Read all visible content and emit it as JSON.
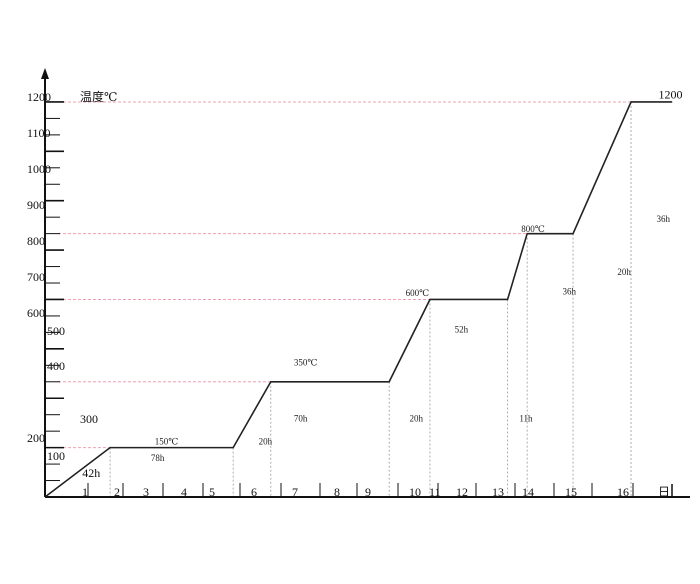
{
  "chart_data": {
    "type": "line",
    "ylabel": "温度℃",
    "xlabel": "日",
    "y_tick_labels": [
      "1200",
      "1100",
      "1000",
      "900",
      "800",
      "700",
      "600",
      "500",
      "400",
      "300",
      "200",
      "100"
    ],
    "x_tick_labels": [
      "1",
      "2",
      "3",
      "4",
      "5",
      "6",
      "7",
      "8",
      "9",
      "10",
      "11",
      "12",
      "13",
      "14",
      "15",
      "16"
    ],
    "ylim": [
      0,
      1200
    ],
    "xlim": [
      0,
      16.5
    ],
    "series": [
      {
        "points": [
          [
            0,
            0
          ],
          [
            1.66,
            150
          ],
          [
            4.8,
            150
          ],
          [
            5.76,
            350
          ],
          [
            8.78,
            350
          ],
          [
            9.82,
            600
          ],
          [
            11.8,
            600
          ],
          [
            12.3,
            800
          ],
          [
            13.47,
            800
          ],
          [
            14.95,
            1200
          ],
          [
            16,
            1200
          ]
        ]
      }
    ],
    "reference_levels": [
      150,
      350,
      600,
      800,
      1200
    ],
    "annotations": [
      {
        "text": "150℃",
        "x": 2.8,
        "y": 160
      },
      {
        "text": "78h",
        "x": 2.7,
        "y": 110
      },
      {
        "text": "42h",
        "x": 0.95,
        "y": 60
      },
      {
        "text": "20h",
        "x": 5.45,
        "y": 160
      },
      {
        "text": "350℃",
        "x": 6.35,
        "y": 400
      },
      {
        "text": "70h",
        "x": 6.35,
        "y": 230
      },
      {
        "text": "20h",
        "x": 9.3,
        "y": 230
      },
      {
        "text": "600℃",
        "x": 9.2,
        "y": 610
      },
      {
        "text": "52h",
        "x": 10.45,
        "y": 500
      },
      {
        "text": "11h",
        "x": 12.1,
        "y": 230
      },
      {
        "text": "800℃",
        "x": 12.15,
        "y": 805
      },
      {
        "text": "36h",
        "x": 13.2,
        "y": 615
      },
      {
        "text": "20h",
        "x": 14.6,
        "y": 675
      },
      {
        "text": "36h",
        "x": 15.6,
        "y": 835
      },
      {
        "text": "1200",
        "x": 15.65,
        "y": 1210
      }
    ],
    "colors": {
      "line": "#222222",
      "reference": "#f0a0b0",
      "guide": "#999999"
    },
    "grid": false
  }
}
